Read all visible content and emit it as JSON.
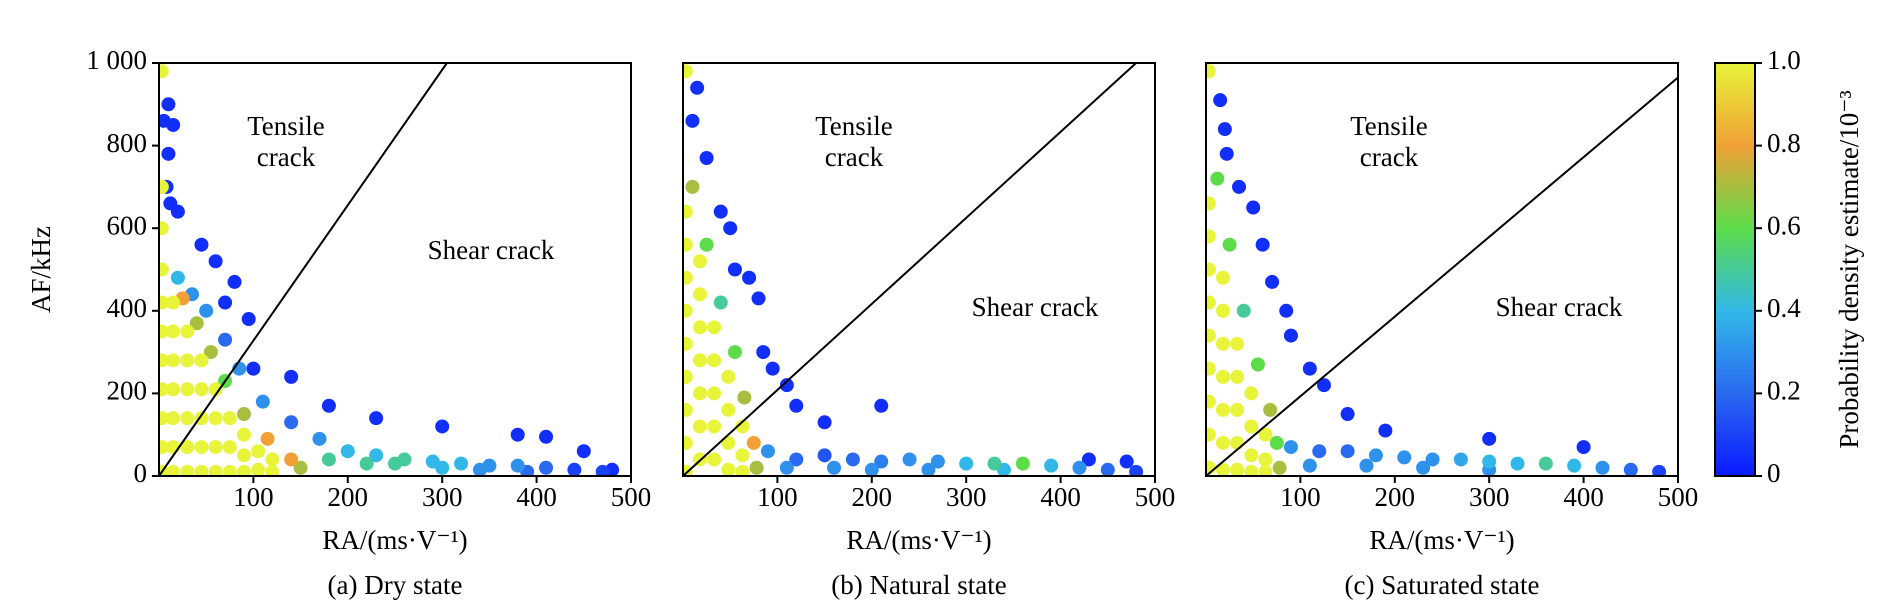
{
  "chart_data": [
    {
      "type": "scatter",
      "caption": "(a) Dry state",
      "xlabel": "RA/(ms·V⁻¹)",
      "ylabel": "AF/kHz",
      "xlim": [
        0,
        500
      ],
      "ylim": [
        0,
        1000
      ],
      "xticks": [
        100,
        200,
        300,
        400,
        500
      ],
      "yticks": [
        0,
        200,
        400,
        600,
        800,
        {
          "value": 1000,
          "label": "1 000"
        }
      ],
      "tensile_label": [
        "Tensile",
        "crack"
      ],
      "shear_label": "Shear crack",
      "boundary": {
        "x": [
          0,
          305
        ],
        "y": [
          0,
          1000
        ]
      },
      "x": [
        3,
        3,
        3,
        3,
        3,
        3,
        3,
        3,
        3,
        3,
        3,
        15,
        15,
        15,
        15,
        15,
        15,
        15,
        30,
        30,
        30,
        30,
        30,
        30,
        45,
        45,
        45,
        45,
        45,
        60,
        60,
        60,
        60,
        75,
        75,
        75,
        90,
        90,
        90,
        105,
        105,
        120,
        120,
        25,
        40,
        55,
        70,
        90,
        115,
        140,
        150,
        20,
        35,
        50,
        70,
        85,
        110,
        140,
        170,
        200,
        230,
        260,
        290,
        320,
        350,
        380,
        410,
        440,
        470,
        180,
        220,
        250,
        300,
        340,
        390,
        10,
        5,
        15,
        10,
        20,
        45,
        60,
        80,
        70,
        95,
        100,
        140,
        180,
        230,
        300,
        380,
        410,
        450,
        480,
        8,
        12
      ],
      "y": [
        980,
        700,
        600,
        500,
        420,
        350,
        280,
        210,
        140,
        70,
        10,
        420,
        350,
        280,
        210,
        140,
        70,
        10,
        350,
        280,
        210,
        140,
        70,
        10,
        280,
        210,
        140,
        70,
        10,
        210,
        140,
        70,
        10,
        140,
        70,
        10,
        100,
        50,
        10,
        60,
        15,
        40,
        10,
        430,
        370,
        300,
        230,
        150,
        90,
        40,
        20,
        480,
        440,
        400,
        330,
        260,
        180,
        130,
        90,
        60,
        50,
        40,
        35,
        30,
        25,
        25,
        20,
        15,
        10,
        40,
        30,
        30,
        20,
        15,
        10,
        900,
        860,
        850,
        780,
        640,
        560,
        520,
        470,
        420,
        380,
        260,
        240,
        170,
        140,
        120,
        100,
        95,
        60,
        15,
        700,
        660
      ],
      "density": [
        1,
        1,
        1,
        1,
        1,
        1,
        1,
        1,
        1,
        1,
        1,
        1,
        1,
        1,
        1,
        1,
        1,
        1,
        1,
        1,
        1,
        1,
        1,
        1,
        1,
        1,
        1,
        1,
        1,
        1,
        1,
        1,
        1,
        1,
        1,
        1,
        1,
        1,
        1,
        1,
        1,
        1,
        1,
        0.8,
        0.7,
        0.7,
        0.6,
        0.7,
        0.8,
        0.8,
        0.7,
        0.4,
        0.3,
        0.3,
        0.2,
        0.3,
        0.3,
        0.2,
        0.3,
        0.4,
        0.4,
        0.5,
        0.4,
        0.4,
        0.3,
        0.3,
        0.2,
        0.1,
        0.1,
        0.5,
        0.5,
        0.5,
        0.4,
        0.3,
        0.2,
        0.05,
        0.05,
        0.05,
        0.05,
        0.05,
        0.05,
        0.05,
        0.05,
        0.05,
        0.05,
        0.05,
        0.05,
        0.05,
        0.05,
        0.05,
        0.05,
        0.05,
        0.05,
        0.05,
        0.05,
        0.05
      ]
    },
    {
      "type": "scatter",
      "caption": "(b) Natural state",
      "xlabel": "RA/(ms·V⁻¹)",
      "xlim": [
        0,
        500
      ],
      "ylim": [
        0,
        1000
      ],
      "xticks": [
        100,
        200,
        300,
        400,
        500
      ],
      "tensile_label": [
        "Tensile",
        "crack"
      ],
      "shear_label": "Shear crack",
      "boundary": {
        "x": [
          0,
          480
        ],
        "y": [
          0,
          1000
        ]
      },
      "x": [
        3,
        3,
        3,
        3,
        3,
        3,
        3,
        3,
        3,
        3,
        18,
        18,
        18,
        18,
        18,
        18,
        18,
        33,
        33,
        33,
        33,
        33,
        48,
        48,
        48,
        48,
        63,
        63,
        63,
        10,
        25,
        40,
        55,
        65,
        75,
        78,
        90,
        120,
        150,
        180,
        210,
        240,
        270,
        300,
        330,
        360,
        390,
        420,
        450,
        480,
        110,
        160,
        200,
        260,
        340,
        15,
        10,
        25,
        40,
        50,
        55,
        70,
        80,
        85,
        95,
        110,
        120,
        150,
        210,
        430,
        470
      ],
      "y": [
        980,
        640,
        560,
        480,
        400,
        320,
        240,
        160,
        80,
        10,
        520,
        440,
        360,
        280,
        200,
        120,
        40,
        360,
        280,
        200,
        120,
        40,
        240,
        160,
        80,
        15,
        120,
        50,
        10,
        700,
        560,
        420,
        300,
        190,
        80,
        20,
        60,
        40,
        50,
        40,
        35,
        40,
        35,
        30,
        30,
        30,
        25,
        20,
        15,
        10,
        20,
        20,
        15,
        15,
        15,
        940,
        860,
        770,
        640,
        600,
        500,
        480,
        430,
        300,
        260,
        220,
        170,
        130,
        170,
        40,
        35
      ],
      "density": [
        1,
        1,
        1,
        1,
        1,
        1,
        1,
        1,
        1,
        1,
        1,
        1,
        1,
        1,
        1,
        1,
        1,
        1,
        1,
        1,
        1,
        1,
        1,
        1,
        1,
        1,
        1,
        1,
        1,
        0.7,
        0.6,
        0.5,
        0.6,
        0.7,
        0.8,
        0.7,
        0.3,
        0.2,
        0.15,
        0.2,
        0.25,
        0.3,
        0.3,
        0.4,
        0.5,
        0.6,
        0.4,
        0.3,
        0.2,
        0.1,
        0.3,
        0.3,
        0.3,
        0.3,
        0.4,
        0.05,
        0.05,
        0.05,
        0.05,
        0.05,
        0.05,
        0.05,
        0.05,
        0.05,
        0.05,
        0.05,
        0.05,
        0.05,
        0.05,
        0.05,
        0.05
      ]
    },
    {
      "type": "scatter",
      "caption": "(c) Saturated state",
      "xlabel": "RA/(ms·V⁻¹)",
      "xlim": [
        0,
        500
      ],
      "ylim": [
        0,
        1000
      ],
      "xticks": [
        100,
        200,
        300,
        400,
        500
      ],
      "tensile_label": [
        "Tensile",
        "crack"
      ],
      "shear_label": "Shear crack",
      "boundary": {
        "x": [
          0,
          500
        ],
        "y": [
          0,
          965
        ]
      },
      "x": [
        3,
        3,
        3,
        3,
        3,
        3,
        3,
        3,
        3,
        3,
        18,
        18,
        18,
        18,
        18,
        18,
        18,
        33,
        33,
        33,
        33,
        33,
        48,
        48,
        48,
        48,
        63,
        63,
        63,
        12,
        25,
        40,
        55,
        68,
        75,
        78,
        90,
        120,
        150,
        180,
        210,
        240,
        270,
        300,
        330,
        360,
        390,
        420,
        450,
        480,
        110,
        170,
        230,
        300,
        15,
        20,
        22,
        35,
        50,
        60,
        70,
        85,
        90,
        110,
        125,
        150,
        190,
        300,
        400
      ],
      "y": [
        980,
        660,
        580,
        500,
        420,
        340,
        260,
        180,
        100,
        20,
        480,
        400,
        320,
        240,
        160,
        80,
        15,
        320,
        240,
        160,
        80,
        15,
        200,
        120,
        50,
        10,
        100,
        40,
        10,
        720,
        560,
        400,
        270,
        160,
        80,
        20,
        70,
        60,
        60,
        50,
        45,
        40,
        40,
        35,
        30,
        30,
        25,
        20,
        15,
        10,
        25,
        25,
        20,
        15,
        910,
        840,
        780,
        700,
        650,
        560,
        470,
        400,
        340,
        260,
        220,
        150,
        110,
        90,
        70
      ],
      "density": [
        1,
        1,
        1,
        1,
        1,
        1,
        1,
        1,
        1,
        1,
        1,
        1,
        1,
        1,
        1,
        1,
        1,
        1,
        1,
        1,
        1,
        1,
        1,
        1,
        1,
        1,
        1,
        1,
        1,
        0.6,
        0.6,
        0.5,
        0.6,
        0.7,
        0.6,
        0.7,
        0.3,
        0.2,
        0.2,
        0.3,
        0.3,
        0.3,
        0.35,
        0.4,
        0.4,
        0.5,
        0.4,
        0.3,
        0.2,
        0.1,
        0.3,
        0.3,
        0.3,
        0.3,
        0.05,
        0.05,
        0.05,
        0.05,
        0.05,
        0.05,
        0.05,
        0.05,
        0.05,
        0.05,
        0.05,
        0.05,
        0.05,
        0.05,
        0.05
      ]
    }
  ],
  "colorbar": {
    "label": "Probability density estimate/10⁻³",
    "lim": [
      0,
      1
    ],
    "ticks": [
      0,
      0.2,
      0.4,
      0.6,
      0.8,
      {
        "value": 1,
        "label": "1.0"
      }
    ],
    "colors": [
      "#0a1aff",
      "#2a6af0",
      "#31b8e8",
      "#5ddc4a",
      "#f0a035",
      "#e8f43a"
    ]
  }
}
